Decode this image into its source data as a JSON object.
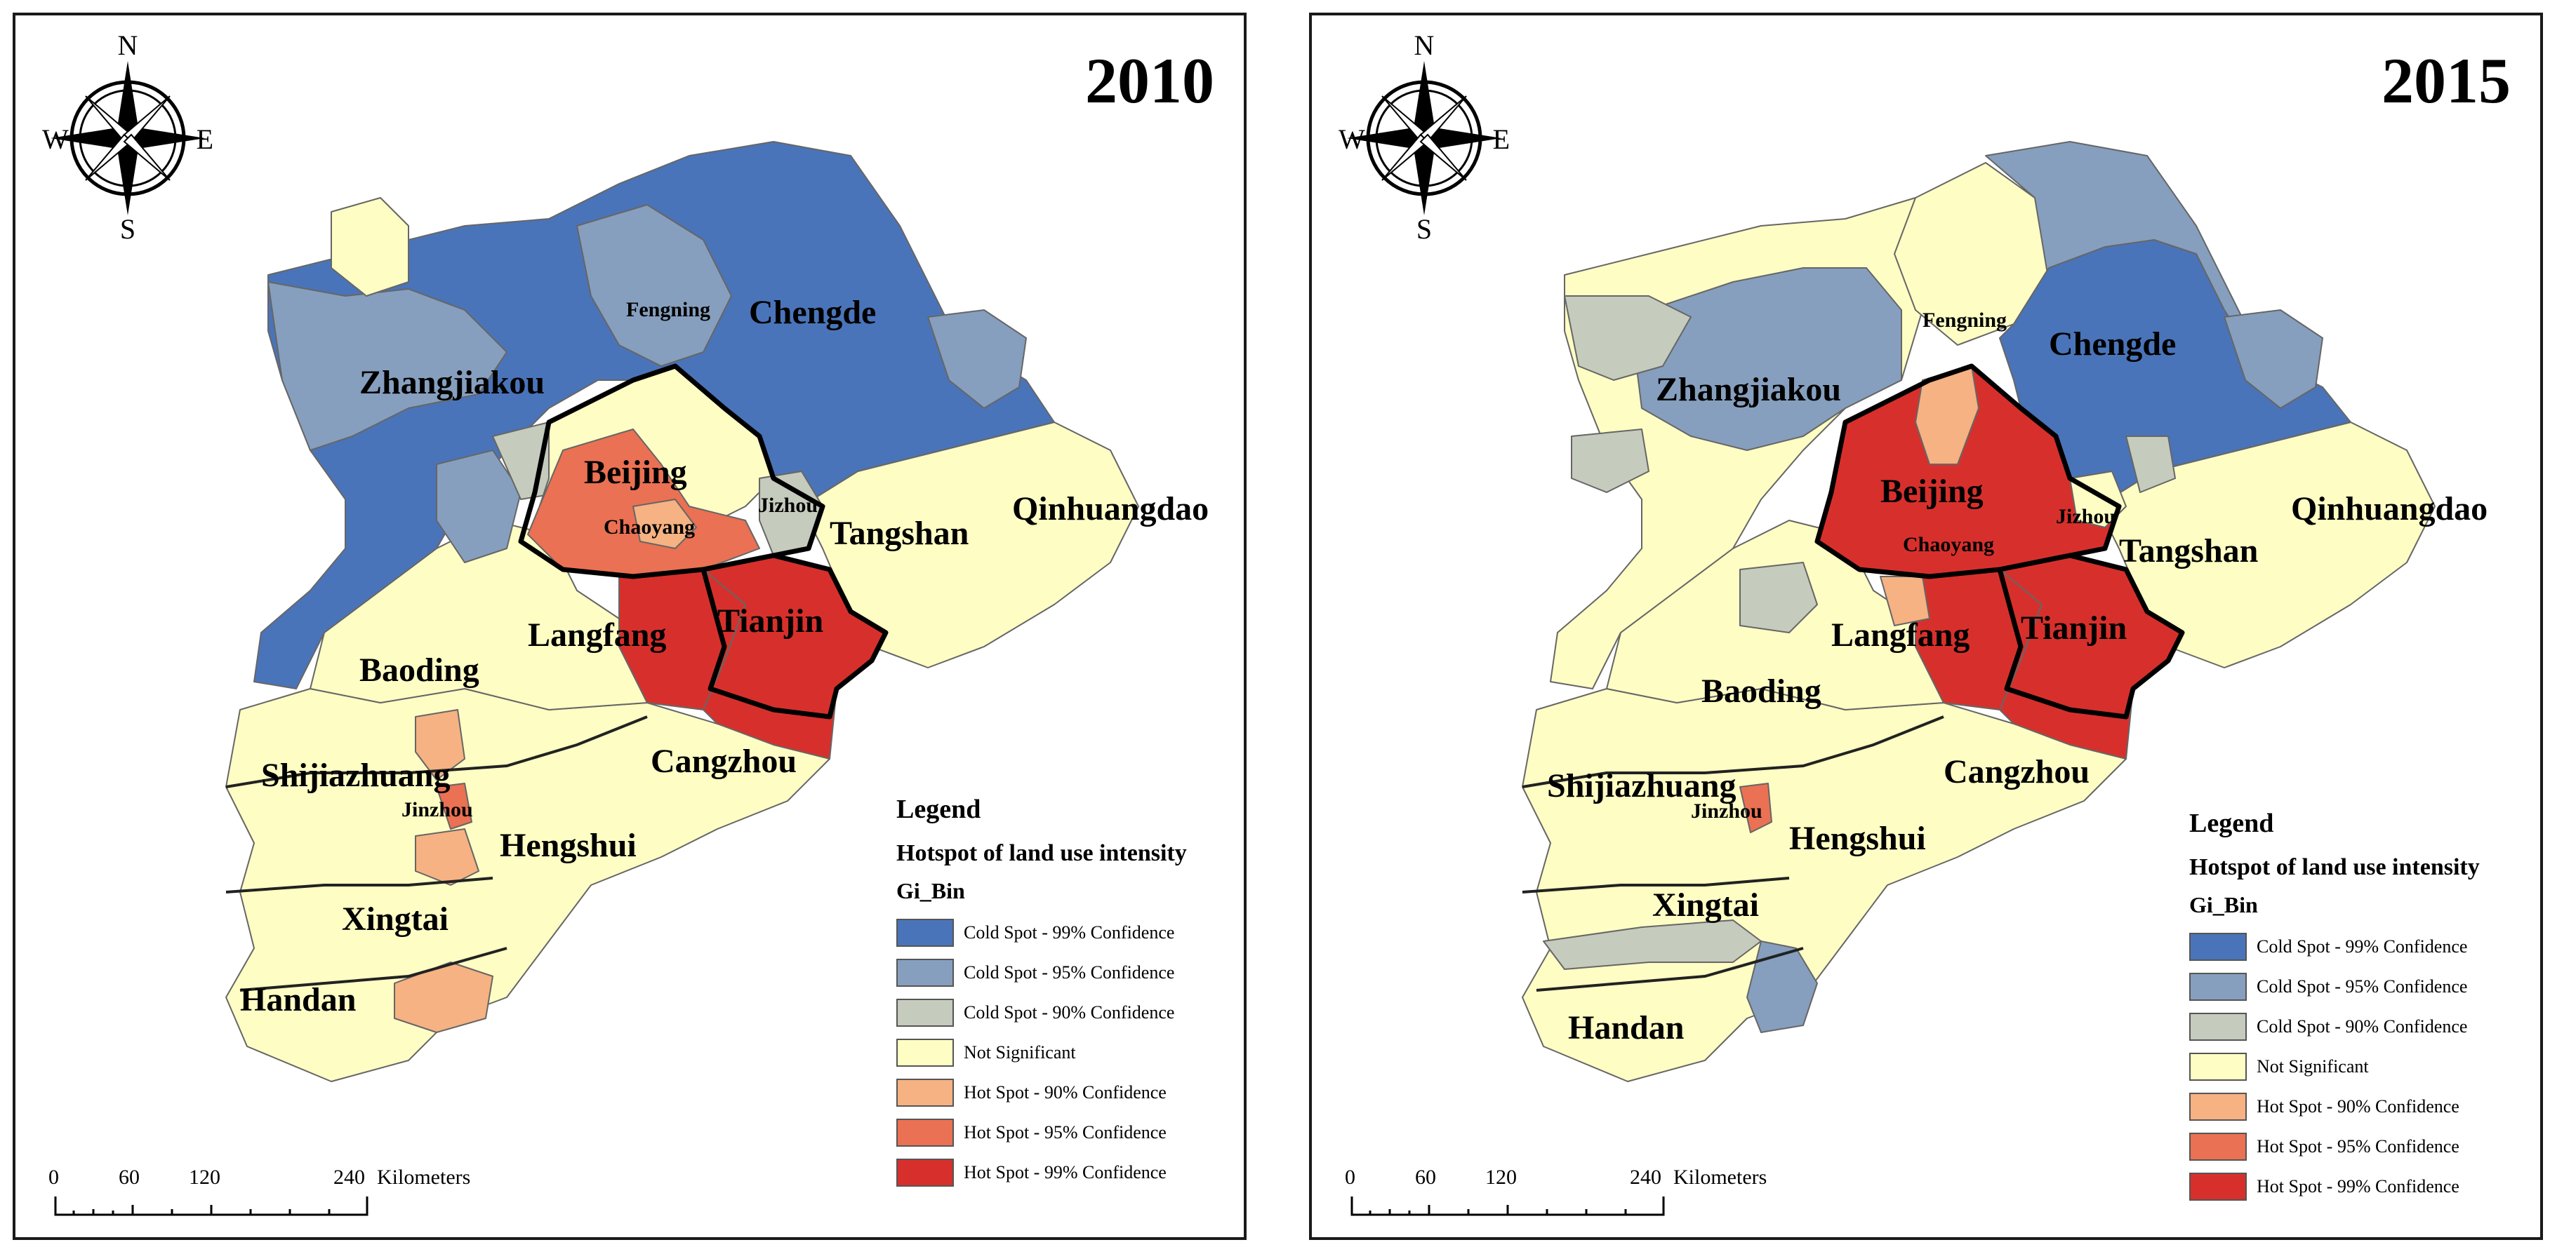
{
  "panels": [
    {
      "year": "2010",
      "labels": {
        "zhangjiakou": "Zhangjiakou",
        "fengning": "Fengning",
        "chengde": "Chengde",
        "beijing": "Beijing",
        "chaoyang": "Chaoyang",
        "jizhou": "Jizhou",
        "tangshan": "Tangshan",
        "qinhuangdao": "Qinhuangdao",
        "langfang": "Langfang",
        "tianjin": "Tianjin",
        "baoding": "Baoding",
        "shijiazhuang": "Shijiazhuang",
        "jinzhou": "Jinzhou",
        "cangzhou": "Cangzhou",
        "hengshui": "Hengshui",
        "xingtai": "Xingtai",
        "handan": "Handan"
      }
    },
    {
      "year": "2015",
      "labels": {
        "zhangjiakou": "Zhangjiakou",
        "fengning": "Fengning",
        "chengde": "Chengde",
        "beijing": "Beijing",
        "chaoyang": "Chaoyang",
        "jizhou": "Jizhou",
        "tangshan": "Tangshan",
        "qinhuangdao": "Qinhuangdao",
        "langfang": "Langfang",
        "tianjin": "Tianjin",
        "baoding": "Baoding",
        "shijiazhuang": "Shijiazhuang",
        "jinzhou": "Jinzhou",
        "cangzhou": "Cangzhou",
        "hengshui": "Hengshui",
        "xingtai": "Xingtai",
        "handan": "Handan"
      }
    }
  ],
  "compass": {
    "n": "N",
    "s": "S",
    "e": "E",
    "w": "W"
  },
  "legend": {
    "title": "Legend",
    "subtitle": "Hotspot of land use intensity",
    "field": "Gi_Bin",
    "items": [
      {
        "label": "Cold Spot - 99% Confidence",
        "color": "#4a74b9"
      },
      {
        "label": "Cold Spot - 95% Confidence",
        "color": "#869fbe"
      },
      {
        "label": "Cold Spot - 90% Confidence",
        "color": "#c5cbbd"
      },
      {
        "label": "Not Significant",
        "color": "#fefdc4"
      },
      {
        "label": "Hot Spot - 90% Confidence",
        "color": "#f6b282"
      },
      {
        "label": "Hot Spot - 95% Confidence",
        "color": "#ea7153"
      },
      {
        "label": "Hot Spot - 99% Confidence",
        "color": "#d7302c"
      }
    ]
  },
  "scale": {
    "ticks": [
      "0",
      "60",
      "120",
      "240"
    ],
    "unit": "Kilometers"
  }
}
